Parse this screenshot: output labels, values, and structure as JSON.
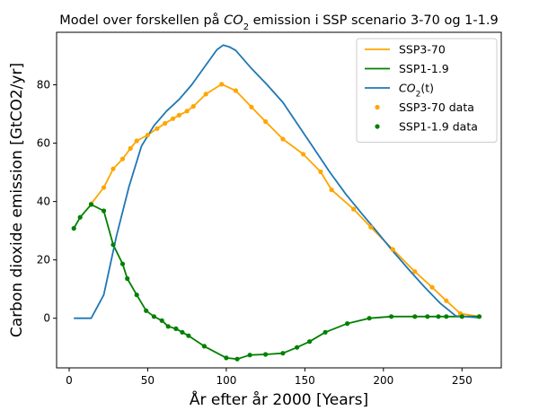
{
  "chart_data": {
    "type": "line",
    "title_pre": "Model over forskellen på ",
    "title_sym": "CO",
    "title_sub": "2",
    "title_post": " emission i SSP scenario 3-70 og 1-1.9",
    "xlabel": "År efter år 2000 [Years]",
    "ylabel": "Carbon dioxide emission [GtCO2/yr]",
    "xlim": [
      -8,
      275
    ],
    "ylim": [
      -17,
      98
    ],
    "xticks": [
      0,
      50,
      100,
      150,
      200,
      250
    ],
    "yticks": [
      0,
      20,
      40,
      60,
      80
    ],
    "legend_position": "top-right",
    "series": [
      {
        "name": "SSP3-70",
        "kind": "line",
        "color": "#ffa500",
        "x": [
          14,
          22,
          28,
          34,
          39,
          43,
          50,
          56,
          61,
          66,
          70,
          75,
          79,
          87,
          97,
          106,
          116,
          125,
          136,
          149,
          160,
          167,
          181,
          192,
          206,
          220,
          231,
          240,
          249,
          261
        ],
        "y": [
          39.2,
          44.8,
          51.2,
          54.6,
          58.2,
          60.8,
          62.8,
          65.0,
          66.8,
          68.4,
          69.6,
          71.0,
          72.6,
          76.8,
          80.2,
          78.0,
          72.4,
          67.4,
          61.4,
          56.2,
          50.2,
          44.0,
          37.4,
          31.2,
          23.6,
          16.0,
          10.6,
          6.0,
          1.6,
          0.6
        ]
      },
      {
        "name": "SSP1-1.9",
        "kind": "line",
        "color": "#008000",
        "x": [
          3,
          7,
          14,
          22,
          28,
          34,
          37,
          43,
          49,
          54,
          59,
          63,
          68,
          72,
          76,
          86,
          100,
          107,
          115,
          125,
          136,
          145,
          153,
          163,
          177,
          191,
          205,
          220,
          228,
          235,
          240,
          250,
          261
        ],
        "y": [
          30.8,
          34.6,
          39.0,
          36.8,
          25.2,
          18.6,
          13.6,
          8.0,
          2.6,
          0.6,
          -0.8,
          -2.8,
          -3.6,
          -4.8,
          -6.0,
          -9.6,
          -13.6,
          -14.0,
          -12.6,
          -12.4,
          -12.0,
          -10.0,
          -8.0,
          -4.8,
          -1.8,
          0.0,
          0.6,
          0.6,
          0.6,
          0.6,
          0.6,
          0.6,
          0.6
        ]
      },
      {
        "name_sym": "CO",
        "name_sub": "2",
        "name_post": "(t)",
        "kind": "line",
        "color": "#1f77b4",
        "x": [
          3,
          14,
          22,
          30,
          38,
          46,
          54,
          62,
          70,
          78,
          86,
          94,
          98,
          102,
          106,
          116,
          126,
          136,
          146,
          156,
          166,
          176,
          186,
          196,
          206,
          216,
          226,
          236,
          246,
          261
        ],
        "y": [
          0,
          0,
          8,
          28,
          45,
          59,
          66,
          71,
          75,
          80,
          86,
          92,
          93.6,
          93.0,
          91.8,
          85.6,
          80,
          74,
          66,
          58,
          50,
          42.6,
          36,
          29.6,
          23,
          16.8,
          10.8,
          5.2,
          0.8,
          0.2
        ]
      },
      {
        "name": "SSP3-70 data",
        "kind": "points",
        "color": "#ffa500",
        "x": [
          14,
          22,
          28,
          34,
          39,
          43,
          50,
          56,
          61,
          66,
          70,
          75,
          79,
          87,
          97,
          106,
          116,
          125,
          136,
          149,
          160,
          167,
          181,
          192,
          206,
          220,
          231,
          240,
          249,
          261
        ],
        "y": [
          39.2,
          44.8,
          51.2,
          54.6,
          58.2,
          60.8,
          62.8,
          65.0,
          66.8,
          68.4,
          69.6,
          71.0,
          72.6,
          76.8,
          80.2,
          78.0,
          72.4,
          67.4,
          61.4,
          56.2,
          50.2,
          44.0,
          37.4,
          31.2,
          23.6,
          16.0,
          10.6,
          6.0,
          1.6,
          0.6
        ]
      },
      {
        "name": "SSP1-1.9 data",
        "kind": "points",
        "color": "#008000",
        "x": [
          3,
          7,
          14,
          22,
          28,
          34,
          37,
          43,
          49,
          54,
          59,
          63,
          68,
          72,
          76,
          86,
          100,
          107,
          115,
          125,
          136,
          145,
          153,
          163,
          177,
          191,
          205,
          220,
          228,
          235,
          240,
          250,
          261
        ],
        "y": [
          30.8,
          34.6,
          39.0,
          36.8,
          25.2,
          18.6,
          13.6,
          8.0,
          2.6,
          0.6,
          -0.8,
          -2.8,
          -3.6,
          -4.8,
          -6.0,
          -9.6,
          -13.6,
          -14.0,
          -12.6,
          -12.4,
          -12.0,
          -10.0,
          -8.0,
          -4.8,
          -1.8,
          0.0,
          0.6,
          0.6,
          0.6,
          0.6,
          0.6,
          0.6,
          0.6
        ]
      }
    ]
  }
}
